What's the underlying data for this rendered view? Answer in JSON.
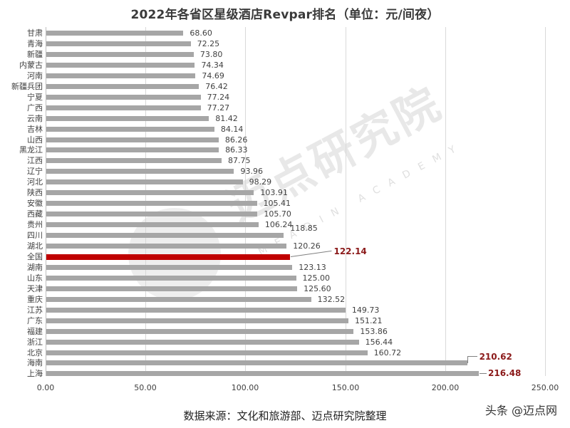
{
  "title": "2022年各省区星级酒店Revpar排名（单位：元/间夜）",
  "source": "数据来源：文化和旅游部、迈点研究院整理",
  "credit": "头条 @迈点网",
  "watermark": {
    "text": "迈点研究院",
    "subtext": "MEADIN ACADEMY",
    "icon": "meadin-logo-icon"
  },
  "colors": {
    "bar": "#a6a6a6",
    "highlight_bar": "#c00000",
    "highlight_label": "#8b1a1a",
    "grid": "#d9d9d9"
  },
  "x_ticks": [
    "0.00",
    "50.00",
    "100.00",
    "150.00",
    "200.00",
    "250.00"
  ],
  "chart_data": {
    "type": "bar",
    "orientation": "horizontal",
    "title": "2022年各省区星级酒店Revpar排名（单位：元/间夜）",
    "xlabel": "",
    "ylabel": "",
    "xlim": [
      0,
      250
    ],
    "x_ticks": [
      0,
      50,
      100,
      150,
      200,
      250
    ],
    "grid": true,
    "legend": null,
    "categories": [
      "甘肃",
      "青海",
      "新疆",
      "内蒙古",
      "河南",
      "新疆兵团",
      "宁夏",
      "广西",
      "云南",
      "吉林",
      "山西",
      "黑龙江",
      "江西",
      "辽宁",
      "河北",
      "陕西",
      "安徽",
      "西藏",
      "贵州",
      "四川",
      "湖北",
      "全国",
      "湖南",
      "山东",
      "天津",
      "重庆",
      "江苏",
      "广东",
      "福建",
      "浙江",
      "北京",
      "海南",
      "上海"
    ],
    "values": [
      68.6,
      72.25,
      73.8,
      74.34,
      74.69,
      76.42,
      77.24,
      77.27,
      81.42,
      84.14,
      86.26,
      86.33,
      87.75,
      93.96,
      98.29,
      103.91,
      105.41,
      105.7,
      106.24,
      118.85,
      120.26,
      122.14,
      123.13,
      125.0,
      125.6,
      132.52,
      149.73,
      151.21,
      153.86,
      156.44,
      160.72,
      210.62,
      216.48
    ],
    "labels": [
      "68.60",
      "72.25",
      "73.80",
      "74.34",
      "74.69",
      "76.42",
      "77.24",
      "77.27",
      "81.42",
      "84.14",
      "86.26",
      "86.33",
      "87.75",
      "93.96",
      "98.29",
      "103.91",
      "105.41",
      "105.70",
      "106.24",
      "118.85",
      "120.26",
      "122.14",
      "123.13",
      "125.00",
      "125.60",
      "132.52",
      "149.73",
      "151.21",
      "153.86",
      "156.44",
      "160.72",
      "210.62",
      "216.48"
    ],
    "highlighted": [
      "全国",
      "海南",
      "上海"
    ],
    "annotations": "全国 bar colored red; 全国, 海南, 上海 value labels in bold dark red with leader lines",
    "footnote": "数据来源：文化和旅游部、迈点研究院整理"
  }
}
